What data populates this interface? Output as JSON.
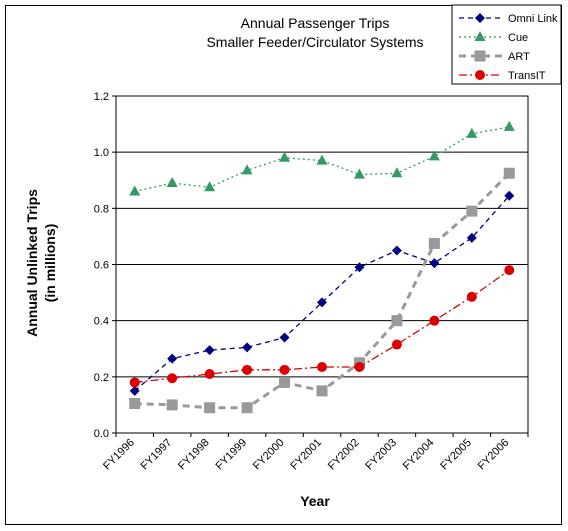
{
  "chart_data": {
    "type": "line",
    "title": "Annual Passenger Trips",
    "subtitle": "Smaller Feeder/Circulator Systems",
    "xlabel": "Year",
    "ylabel": "Annual Unlinked Trips",
    "ylabel_line2": "(in millions)",
    "ylim": [
      0.0,
      1.2
    ],
    "y_ticks": [
      "0.0",
      "0.2",
      "0.4",
      "0.6",
      "0.8",
      "1.0",
      "1.2"
    ],
    "grid": "horizontal",
    "legend_position": "top-right",
    "categories": [
      "FY1996",
      "FY1997",
      "FY1998",
      "FY1999",
      "FY2000",
      "FY2001",
      "FY2002",
      "FY2003",
      "FY2004",
      "FY2005",
      "FY2006"
    ],
    "series": [
      {
        "name": "Omni Link",
        "color": "#000080",
        "marker": "diamond",
        "dash": "5,4",
        "values": [
          0.15,
          0.265,
          0.295,
          0.305,
          0.34,
          0.465,
          0.59,
          0.65,
          0.605,
          0.695,
          0.845
        ]
      },
      {
        "name": "Cue",
        "color": "#339966",
        "marker": "triangle",
        "dash": "2,3",
        "values": [
          0.86,
          0.89,
          0.875,
          0.935,
          0.98,
          0.97,
          0.92,
          0.925,
          0.985,
          1.065,
          1.09
        ]
      },
      {
        "name": "ART",
        "color": "#999999",
        "marker": "square",
        "dash": "7,5",
        "values": [
          0.105,
          0.1,
          0.09,
          0.09,
          0.18,
          0.15,
          0.25,
          0.4,
          0.675,
          0.79,
          0.925
        ]
      },
      {
        "name": "TransIT",
        "color": "#dd0000",
        "marker": "circle",
        "dash": "8,3,2,3",
        "values": [
          0.18,
          0.195,
          0.21,
          0.225,
          0.225,
          0.235,
          0.235,
          0.315,
          0.4,
          0.485,
          0.58
        ]
      }
    ]
  }
}
